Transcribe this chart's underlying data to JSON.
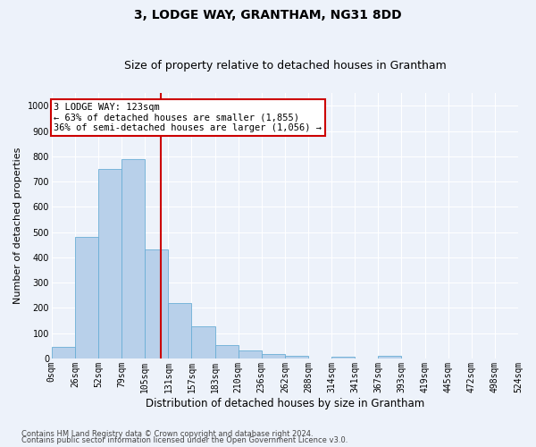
{
  "title": "3, LODGE WAY, GRANTHAM, NG31 8DD",
  "subtitle": "Size of property relative to detached houses in Grantham",
  "xlabel": "Distribution of detached houses by size in Grantham",
  "ylabel": "Number of detached properties",
  "bin_labels": [
    "0sqm",
    "26sqm",
    "52sqm",
    "79sqm",
    "105sqm",
    "131sqm",
    "157sqm",
    "183sqm",
    "210sqm",
    "236sqm",
    "262sqm",
    "288sqm",
    "314sqm",
    "341sqm",
    "367sqm",
    "393sqm",
    "419sqm",
    "445sqm",
    "472sqm",
    "498sqm",
    "524sqm"
  ],
  "bar_values": [
    45,
    480,
    750,
    790,
    430,
    220,
    128,
    52,
    30,
    17,
    10,
    0,
    8,
    0,
    10,
    0,
    0,
    0,
    0,
    0
  ],
  "bar_color": "#b8d0ea",
  "bar_edge_color": "#6aaed6",
  "vline_color": "#cc0000",
  "annotation_text": "3 LODGE WAY: 123sqm\n← 63% of detached houses are smaller (1,855)\n36% of semi-detached houses are larger (1,056) →",
  "annotation_box_color": "#ffffff",
  "annotation_box_edge_color": "#cc0000",
  "ylim": [
    0,
    1050
  ],
  "yticks": [
    0,
    100,
    200,
    300,
    400,
    500,
    600,
    700,
    800,
    900,
    1000
  ],
  "footnote1": "Contains HM Land Registry data © Crown copyright and database right 2024.",
  "footnote2": "Contains public sector information licensed under the Open Government Licence v3.0.",
  "bg_color": "#edf2fa",
  "plot_bg_color": "#edf2fa",
  "grid_color": "#ffffff",
  "title_fontsize": 10,
  "subtitle_fontsize": 9,
  "xlabel_fontsize": 8.5,
  "ylabel_fontsize": 8,
  "tick_fontsize": 7,
  "annot_fontsize": 7.5,
  "footnote_fontsize": 6
}
